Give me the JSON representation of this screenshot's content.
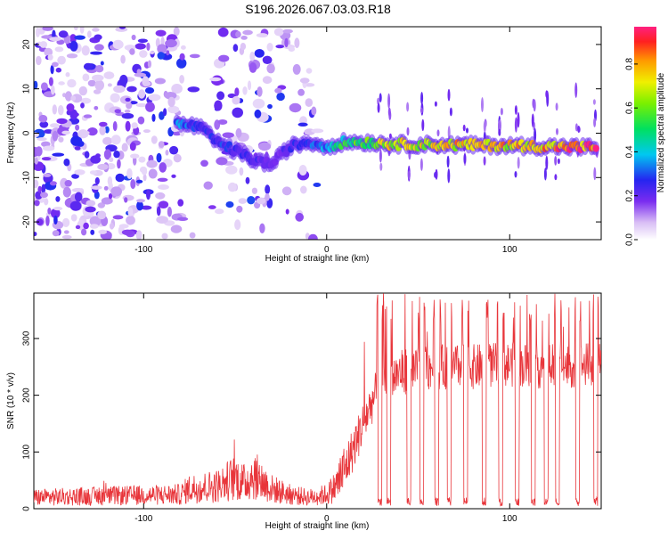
{
  "title": "S196.2026.067.03.03.R18",
  "chart_data": [
    {
      "type": "heatmap",
      "title": "S196.2026.067.03.03.R18",
      "xlabel": "Height of straight line (km)",
      "ylabel": "Frequency (Hz)",
      "xlim": [
        -160,
        150
      ],
      "ylim": [
        -24,
        24
      ],
      "x_ticks": [
        "-100",
        "0",
        "100"
      ],
      "y_ticks": [
        "-20",
        "-10",
        "0",
        "10",
        "20"
      ],
      "colorbar": {
        "label": "Normalized spectral amplitude",
        "range": [
          0,
          0.97
        ],
        "ticks": [
          "0.0",
          "0.2",
          "0.4",
          "0.6",
          "0.8"
        ]
      },
      "ridge": {
        "x": [
          -80,
          -70,
          -60,
          -50,
          -40,
          -30,
          -20,
          -10,
          0,
          10,
          20,
          40,
          60,
          80,
          100,
          120,
          145
        ],
        "y": [
          2,
          1.5,
          -2,
          -4,
          -6,
          -7,
          -3,
          -2,
          -3,
          -2,
          -2,
          -2.5,
          -2.6,
          -2.7,
          -2.8,
          -3.0,
          -3.2
        ],
        "amplitude": [
          0.35,
          0.3,
          0.3,
          0.28,
          0.25,
          0.2,
          0.25,
          0.3,
          0.4,
          0.55,
          0.6,
          0.8,
          0.75,
          0.85,
          0.8,
          0.9,
          0.95
        ]
      }
    },
    {
      "type": "line",
      "xlabel": "Height of straight line (km)",
      "ylabel": "SNR (10 * v/v)",
      "xlim": [
        -160,
        150
      ],
      "ylim": [
        0,
        380
      ],
      "x_ticks": [
        "-100",
        "0",
        "100"
      ],
      "y_ticks": [
        "0",
        "100",
        "200",
        "300"
      ],
      "color": "#e8353a",
      "envelope": {
        "x": [
          -160,
          -80,
          -75,
          -60,
          -50,
          -45,
          -40,
          -30,
          -20,
          -10,
          0,
          5,
          10,
          15,
          20,
          25,
          30,
          40,
          60,
          80,
          100,
          120,
          150
        ],
        "y": [
          20,
          25,
          35,
          40,
          55,
          45,
          60,
          35,
          25,
          20,
          25,
          40,
          70,
          110,
          150,
          190,
          220,
          240,
          250,
          250,
          255,
          250,
          255
        ]
      },
      "dropouts_x": [
        29,
        34,
        45,
        52,
        60,
        67,
        76,
        86,
        95,
        104,
        113,
        120,
        126,
        137,
        147
      ]
    }
  ]
}
